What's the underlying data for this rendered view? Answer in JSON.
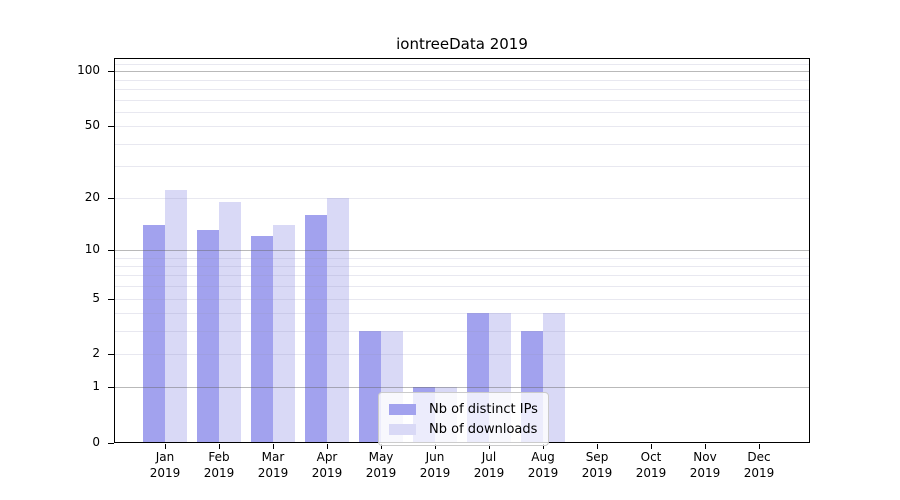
{
  "title": "iontreeData 2019",
  "colors": {
    "series_distinct_ips": "#a2a2ee",
    "series_downloads": "#d9d9f6",
    "grid_major": "#b0b0b0",
    "grid_minor": "#e9e9f1",
    "axis": "#000000",
    "legend_border": "#cbcbcb"
  },
  "legend": {
    "entries": [
      {
        "label": "Nb of distinct IPs"
      },
      {
        "label": "Nb of downloads"
      }
    ]
  },
  "chart_data": {
    "type": "bar",
    "title": "iontreeData 2019",
    "xlabel": "",
    "ylabel": "",
    "categories": [
      "Jan 2019",
      "Feb 2019",
      "Mar 2019",
      "Apr 2019",
      "May 2019",
      "Jun 2019",
      "Jul 2019",
      "Aug 2019",
      "Sep 2019",
      "Oct 2019",
      "Nov 2019",
      "Dec 2019"
    ],
    "series": [
      {
        "name": "Nb of distinct IPs",
        "color": "#a2a2ee",
        "values": [
          14,
          13,
          12,
          16,
          3,
          1,
          4,
          3,
          0,
          0,
          0,
          0
        ]
      },
      {
        "name": "Nb of downloads",
        "color": "#d9d9f6",
        "values": [
          22,
          19,
          14,
          20,
          3,
          1,
          4,
          4,
          0,
          0,
          0,
          0
        ]
      }
    ],
    "yscale": "log1p",
    "ylim": [
      0,
      118
    ],
    "ytick_values": [
      0,
      1,
      2,
      5,
      10,
      20,
      50,
      100
    ],
    "ytick_labels": [
      "0",
      "1",
      "2",
      "5",
      "10",
      "20",
      "50",
      "100"
    ],
    "grid_major_values": [
      1,
      10,
      100
    ],
    "grid_minor_values": [
      2,
      3,
      4,
      5,
      6,
      7,
      8,
      9,
      20,
      30,
      40,
      50,
      60,
      70,
      80,
      90,
      110
    ],
    "grid": "on",
    "legend_position": "lower center"
  }
}
